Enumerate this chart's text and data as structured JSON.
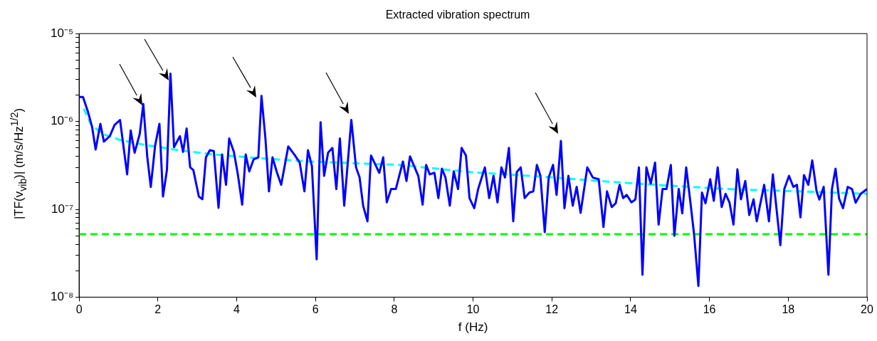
{
  "chart_data": {
    "type": "line",
    "title": "Extracted vibration spectrum",
    "xlabel": "f (Hz)",
    "ylabel": "|TF(v$_{vib}$)| (m/s/Hz$^{1/2}$)",
    "log": "y",
    "grid": false,
    "legend": false,
    "marker": "none",
    "xlim": [
      0,
      20
    ],
    "xticks": [
      0,
      2,
      4,
      6,
      8,
      10,
      12,
      14,
      16,
      18,
      20
    ],
    "ylim": [
      1e-08,
      1e-05
    ],
    "yticks": [
      {
        "value": 1e-08,
        "label": "10⁻⁸"
      },
      {
        "value": 2e-08,
        "label": null
      },
      {
        "value": 3e-08,
        "label": null
      },
      {
        "value": 4e-08,
        "label": null
      },
      {
        "value": 5e-08,
        "label": null
      },
      {
        "value": 6e-08,
        "label": null
      },
      {
        "value": 7e-08,
        "label": null
      },
      {
        "value": 8e-08,
        "label": null
      },
      {
        "value": 9e-08,
        "label": null
      },
      {
        "value": 1e-07,
        "label": "10⁻⁷"
      },
      {
        "value": 2e-07,
        "label": null
      },
      {
        "value": 3e-07,
        "label": null
      },
      {
        "value": 4e-07,
        "label": null
      },
      {
        "value": 5e-07,
        "label": null
      },
      {
        "value": 6e-07,
        "label": null
      },
      {
        "value": 7e-07,
        "label": null
      },
      {
        "value": 8e-07,
        "label": null
      },
      {
        "value": 9e-07,
        "label": null
      },
      {
        "value": 1e-06,
        "label": "10⁻⁶"
      },
      {
        "value": 2e-06,
        "label": null
      },
      {
        "value": 3e-06,
        "label": null
      },
      {
        "value": 4e-06,
        "label": null
      },
      {
        "value": 5e-06,
        "label": null
      },
      {
        "value": 6e-06,
        "label": null
      },
      {
        "value": 7e-06,
        "label": null
      },
      {
        "value": 8e-06,
        "label": null
      },
      {
        "value": 9e-06,
        "label": null
      },
      {
        "value": 1e-05,
        "label": "10⁻⁵"
      }
    ],
    "ref_lines": [
      {
        "axis": "y",
        "value": 5.2e-08,
        "color": "#00ff00",
        "line_style": "dashed"
      }
    ],
    "series": [
      {
        "color": "#0000ff",
        "line_style": "solid",
        "x": [
          0,
          0.1,
          0.23,
          0.33,
          0.42,
          0.54,
          0.63,
          0.78,
          0.9,
          1.04,
          1.22,
          1.31,
          1.41,
          1.54,
          1.63,
          1.73,
          1.82,
          1.93,
          2.04,
          2.13,
          2.23,
          2.32,
          2.41,
          2.56,
          2.64,
          2.73,
          2.82,
          2.9,
          3.04,
          3.13,
          3.22,
          3.32,
          3.42,
          3.54,
          3.63,
          3.73,
          3.81,
          3.93,
          4.03,
          4.14,
          4.23,
          4.32,
          4.43,
          4.55,
          4.63,
          4.73,
          4.82,
          4.91,
          5.02,
          5.13,
          5.31,
          5.48,
          5.6,
          5.72,
          5.81,
          5.91,
          6.03,
          6.13,
          6.22,
          6.32,
          6.43,
          6.53,
          6.62,
          6.73,
          6.91,
          7.03,
          7.12,
          7.21,
          7.32,
          7.41,
          7.62,
          7.72,
          7.81,
          7.92,
          8.04,
          8.22,
          8.31,
          8.4,
          8.61,
          8.72,
          8.81,
          8.9,
          9.02,
          9.12,
          9.21,
          9.3,
          9.41,
          9.51,
          9.62,
          9.71,
          9.82,
          9.91,
          10.03,
          10.13,
          10.3,
          10.41,
          10.52,
          10.62,
          10.72,
          10.81,
          10.91,
          11.02,
          11.11,
          11.21,
          11.31,
          11.43,
          11.53,
          11.62,
          11.71,
          11.82,
          11.92,
          12.03,
          12.12,
          12.23,
          12.32,
          12.42,
          12.53,
          12.63,
          12.73,
          12.9,
          13.04,
          13.19,
          13.31,
          13.4,
          13.52,
          13.62,
          13.72,
          13.81,
          13.9,
          14.02,
          14.12,
          14.21,
          14.3,
          14.4,
          14.51,
          14.62,
          14.71,
          14.81,
          14.91,
          15.02,
          15.11,
          15.22,
          15.31,
          15.41,
          15.52,
          15.61,
          15.72,
          15.81,
          15.9,
          16.02,
          16.11,
          16.21,
          16.31,
          16.41,
          16.51,
          16.61,
          16.71,
          16.8,
          16.91,
          17.01,
          17.12,
          17.2,
          17.39,
          17.51,
          17.61,
          17.8,
          17.9,
          18.02,
          18.13,
          18.22,
          18.31,
          18.4,
          18.51,
          18.61,
          18.72,
          18.79,
          18.9,
          19.02,
          19.11,
          19.2,
          19.29,
          19.39,
          19.51,
          19.62,
          19.71,
          19.84,
          20
        ],
        "values": [
          1.9e-06,
          1.9e-06,
          1.27e-06,
          8.7e-07,
          4.8e-07,
          9.4e-07,
          5.9e-07,
          6.8e-07,
          9.1e-07,
          1.04e-06,
          2.5e-07,
          7.9e-07,
          4.4e-07,
          7.2e-07,
          1.58e-06,
          4e-07,
          1.8e-07,
          5.3e-07,
          9.4e-07,
          1.4e-07,
          2.8e-07,
          3.5e-06,
          5.1e-07,
          6.8e-07,
          4.5e-07,
          8.3e-07,
          3e-07,
          2.8e-07,
          1.4e-07,
          1.3e-07,
          3.9e-07,
          4.7e-07,
          4.6e-07,
          1.04e-07,
          4.2e-07,
          1.9e-07,
          6.4e-07,
          4.5e-07,
          2.5e-07,
          1.13e-07,
          4.2e-07,
          2.7e-07,
          3.7e-07,
          3.9e-07,
          1.95e-06,
          6.4e-07,
          1.6e-07,
          3.9e-07,
          2.65e-07,
          1.9e-07,
          5.2e-07,
          4.1e-07,
          3.4e-07,
          1.6e-07,
          4.7e-07,
          3.1e-07,
          2.7e-08,
          9.8e-07,
          2.4e-07,
          4.4e-07,
          5e-07,
          1.7e-07,
          6.4e-07,
          1.1e-07,
          1.04e-06,
          3e-07,
          2.3e-07,
          1.1e-07,
          7.3e-08,
          4.1e-07,
          2.6e-07,
          3.9e-07,
          1.2e-07,
          1.7e-07,
          1.7e-07,
          3.5e-07,
          2.1e-07,
          4e-07,
          2.4e-07,
          1.13e-07,
          3.2e-07,
          2.5e-07,
          2.6e-07,
          1.34e-07,
          2.9e-07,
          2.3e-07,
          1.1e-07,
          2.7e-07,
          1.7e-07,
          5e-07,
          4.1e-07,
          1.34e-07,
          1.03e-07,
          1.7e-07,
          3e-07,
          1.34e-07,
          2.4e-07,
          1.2e-07,
          3e-07,
          2.3e-07,
          5e-07,
          7.3e-08,
          2.65e-07,
          3e-07,
          1.34e-07,
          1.55e-07,
          1.6e-07,
          3.2e-07,
          2.4e-07,
          5.5e-08,
          2.3e-07,
          3.2e-07,
          1.46e-07,
          6e-07,
          1.03e-07,
          2.4e-07,
          1.1e-07,
          1.8e-07,
          9.1e-08,
          3e-07,
          2.3e-07,
          2.2e-07,
          6.3e-08,
          1.6e-07,
          1.06e-07,
          1.17e-07,
          1.9e-07,
          1.34e-07,
          1.46e-07,
          1.2e-07,
          1.29e-07,
          3e-07,
          1.8e-08,
          3e-07,
          1.96e-07,
          3.4e-07,
          6.7e-08,
          1.7e-07,
          1.7e-07,
          3.2e-07,
          5e-08,
          1.7e-07,
          9e-08,
          3e-07,
          1.17e-07,
          5.2e-08,
          1.34e-08,
          1.55e-07,
          1.17e-07,
          2.2e-07,
          1.25e-07,
          3e-07,
          1.06e-07,
          1.5e-07,
          1.19e-07,
          6.7e-08,
          2.85e-07,
          1.3e-07,
          2.1e-07,
          8.6e-08,
          1.3e-07,
          7.3e-08,
          1.9e-07,
          7.3e-08,
          2.5e-07,
          3.9e-08,
          1.7e-07,
          2.4e-07,
          1.8e-07,
          1.9e-07,
          8.1e-08,
          2.45e-07,
          1.9e-07,
          3.6e-07,
          1.6e-07,
          1.29e-07,
          1.8e-07,
          1.8e-08,
          1.7e-07,
          2.9e-07,
          1.33e-07,
          1.03e-07,
          1.8e-07,
          1.7e-07,
          1.19e-07,
          1.5e-07,
          1.7e-07
        ]
      },
      {
        "color": "#00ffff",
        "line_style": "dashed",
        "x": [
          0.12,
          0.3,
          0.6,
          1.02,
          1.63,
          2.41,
          3.43,
          4.64,
          5.84,
          8.13,
          9.94,
          11.75,
          13.19,
          14.63,
          16.44,
          18.25,
          20
        ],
        "values": [
          1.4e-06,
          9.3e-07,
          7.2e-07,
          6.2e-07,
          5.45e-07,
          4.8e-07,
          4.2e-07,
          3.8e-07,
          3.5e-07,
          3.2e-07,
          2.65e-07,
          2.35e-07,
          2.1e-07,
          1.9e-07,
          1.7e-07,
          1.6e-07,
          1.5e-07
        ]
      }
    ]
  }
}
